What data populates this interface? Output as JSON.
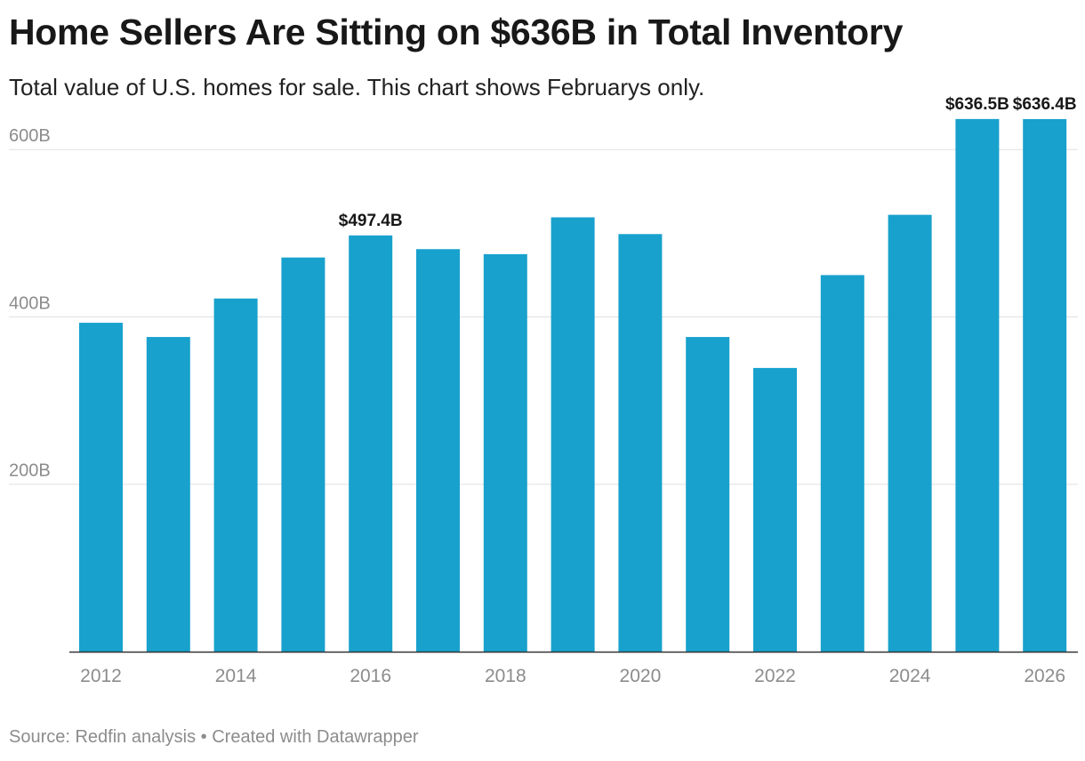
{
  "header": {
    "title": "Home Sellers Are Sitting on $636B in Total Inventory",
    "subtitle": "Total value of U.S. homes for sale. This chart shows Februarys only."
  },
  "footer": {
    "source_text": "Source: Redfin analysis • Created with Datawrapper"
  },
  "colors": {
    "bar": "#18a1cd",
    "grid": "#e0e0e0",
    "axis": "#333333",
    "tick_label": "#8c8c8c",
    "value_label": "#181818"
  },
  "chart_data": {
    "type": "bar",
    "categories": [
      "2012",
      "2013",
      "2014",
      "2015",
      "2016",
      "2017",
      "2018",
      "2019",
      "2020",
      "2021",
      "2022",
      "2023",
      "2024",
      "2025",
      "2026"
    ],
    "values": [
      393,
      376,
      422,
      471,
      497.4,
      481,
      475,
      519,
      499,
      376,
      339,
      450,
      522,
      636.5,
      636.4
    ],
    "x_tick_labels": [
      "2012",
      "",
      "2014",
      "",
      "2016",
      "",
      "2018",
      "",
      "2020",
      "",
      "2022",
      "",
      "2024",
      "",
      "2026"
    ],
    "value_labels": [
      "",
      "",
      "",
      "",
      "$497.4B",
      "",
      "",
      "",
      "",
      "",
      "",
      "",
      "",
      "$636.5B",
      "$636.4B"
    ],
    "y_ticks": [
      200,
      400,
      600
    ],
    "y_tick_labels": [
      "200B",
      "400B",
      "600B"
    ],
    "ylim": [
      0,
      640
    ],
    "grid": true,
    "xlabel": "",
    "ylabel": ""
  }
}
